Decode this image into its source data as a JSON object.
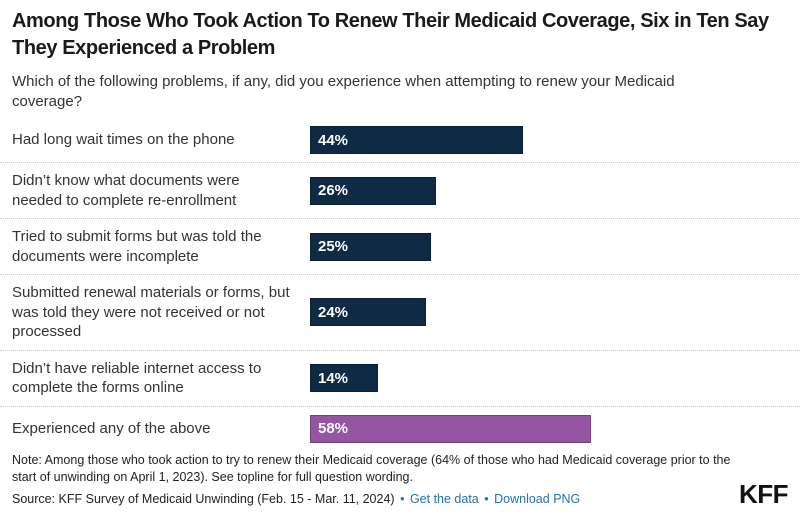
{
  "header": {
    "title": "Among Those Who Took Action To Renew Their Medicaid Coverage, Six in Ten Say They Experienced a Problem",
    "subtitle": "Which of the following problems, if any, did you experience when attempting to renew your Medicaid coverage?"
  },
  "chart_data": {
    "type": "bar",
    "orientation": "horizontal",
    "xlim": [
      0,
      100
    ],
    "unit": "%",
    "grid": false,
    "legend": "none",
    "categories": [
      "Had long wait times on the phone",
      "Didn’t know what documents were needed to complete re-enrollment",
      "Tried to submit forms but was told the documents were incomplete",
      "Submitted renewal materials or forms, but was told they were not received or not processed",
      "Didn’t have reliable internet access to complete the forms online",
      "Experienced any of the above"
    ],
    "values": [
      44,
      26,
      25,
      24,
      14,
      58
    ],
    "rows": [
      {
        "label": "Had long wait times on the phone",
        "value": 44,
        "value_label": "44%",
        "color": "#0e2a45"
      },
      {
        "label": "Didn’t know what documents were needed to complete re-enrollment",
        "value": 26,
        "value_label": "26%",
        "color": "#0e2a45"
      },
      {
        "label": "Tried to submit forms but was told the documents were incomplete",
        "value": 25,
        "value_label": "25%",
        "color": "#0e2a45"
      },
      {
        "label": "Submitted renewal materials or forms, but was told they were not received or not processed",
        "value": 24,
        "value_label": "24%",
        "color": "#0e2a45"
      },
      {
        "label": "Didn’t have reliable internet access to complete the forms online",
        "value": 14,
        "value_label": "14%",
        "color": "#0e2a45"
      },
      {
        "label": "Experienced any of the above",
        "value": 58,
        "value_label": "58%",
        "color": "#9455a2"
      }
    ],
    "colors": {
      "default": "#0e2a45",
      "highlight": "#9455a2"
    }
  },
  "footer": {
    "note": "Note: Among those who took action to try to renew their Medicaid coverage (64% of those who had Medicaid coverage prior to the start of unwinding on April 1, 2023). See topline for full question wording.",
    "source_prefix": "Source: KFF Survey of Medicaid Unwinding (Feb. 15 - Mar. 11, 2024)",
    "separator": "•",
    "links": [
      {
        "label": "Get the data"
      },
      {
        "label": "Download PNG"
      }
    ],
    "logo": "KFF"
  }
}
